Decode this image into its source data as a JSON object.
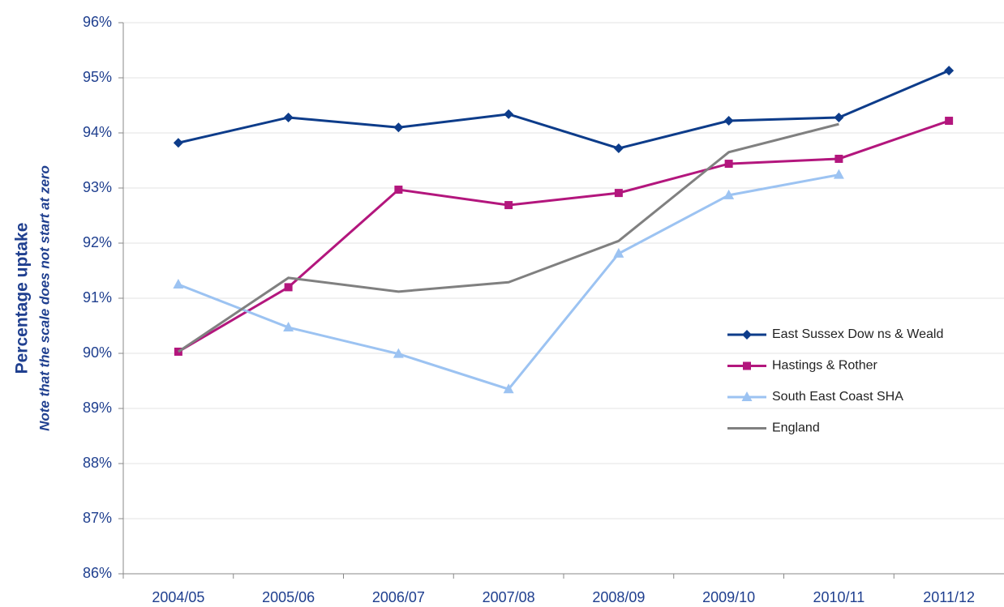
{
  "chart_data": {
    "type": "line",
    "y_label": "Percentage uptake",
    "y_note": "Note that the scale does not start at zero",
    "categories": [
      "2004/05",
      "2005/06",
      "2006/07",
      "2007/08",
      "2008/09",
      "2009/10",
      "2010/11",
      "2011/12"
    ],
    "series": [
      {
        "name": "East Sussex Dow ns & Weald",
        "color": "#0d3c8a",
        "marker": "diamond",
        "values": [
          93.82,
          94.28,
          94.1,
          94.34,
          93.72,
          94.22,
          94.28,
          95.13
        ]
      },
      {
        "name": "Hastings & Rother",
        "color": "#b3167d",
        "marker": "square",
        "values": [
          90.03,
          91.2,
          92.97,
          92.69,
          92.91,
          93.44,
          93.53,
          94.22
        ]
      },
      {
        "name": "South East Coast SHA",
        "color": "#9cc3f2",
        "marker": "triangle",
        "values": [
          91.25,
          90.47,
          89.99,
          89.35,
          91.81,
          92.87,
          93.24,
          null
        ]
      },
      {
        "name": "England",
        "color": "#808080",
        "marker": "none",
        "values": [
          90.03,
          91.37,
          91.12,
          91.29,
          92.04,
          93.65,
          94.16,
          null
        ]
      }
    ],
    "ylim": [
      86,
      96
    ],
    "yticks": [
      {
        "value": 86,
        "label": "86%"
      },
      {
        "value": 87,
        "label": "87%"
      },
      {
        "value": 88,
        "label": "88%"
      },
      {
        "value": 89,
        "label": "89%"
      },
      {
        "value": 90,
        "label": "90%"
      },
      {
        "value": 91,
        "label": "91%"
      },
      {
        "value": 92,
        "label": "92%"
      },
      {
        "value": 93,
        "label": "93%"
      },
      {
        "value": 94,
        "label": "94%"
      },
      {
        "value": 95,
        "label": "95%"
      },
      {
        "value": 96,
        "label": "96%"
      }
    ],
    "grid": true
  }
}
